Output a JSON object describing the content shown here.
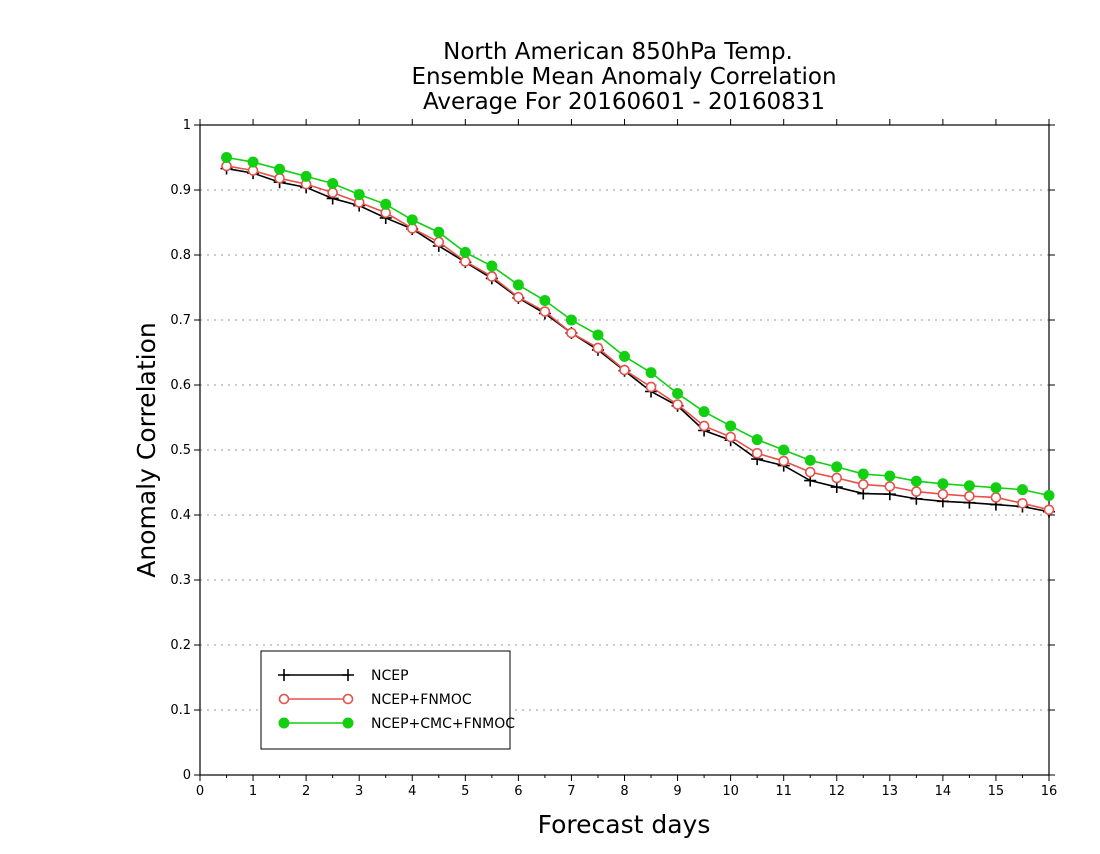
{
  "chart_data": {
    "type": "line",
    "title_lines": [
      "North American 850hPa Temp.",
      "Ensemble Mean Anomaly Correlation",
      "Average For 20160601 - 20160831"
    ],
    "xlabel": "Forecast days",
    "ylabel": "Anomaly Correlation",
    "xlim": [
      0,
      16
    ],
    "ylim": [
      0,
      1
    ],
    "x_ticks": [
      "0",
      "1",
      "2",
      "3",
      "4",
      "5",
      "6",
      "7",
      "8",
      "9",
      "10",
      "11",
      "12",
      "13",
      "14",
      "15",
      "16"
    ],
    "y_ticks": [
      "0",
      "0.1",
      "0.2",
      "0.3",
      "0.4",
      "0.5",
      "0.6",
      "0.7",
      "0.8",
      "0.9",
      "1"
    ],
    "grid": true,
    "legend_position": "bottom-left",
    "x": [
      0.5,
      1,
      1.5,
      2,
      2.5,
      3,
      3.5,
      4,
      4.5,
      5,
      5.5,
      6,
      6.5,
      7,
      7.5,
      8,
      8.5,
      9,
      9.5,
      10,
      10.5,
      11,
      11.5,
      12,
      12.5,
      13,
      13.5,
      14,
      14.5,
      15,
      15.5,
      16
    ],
    "series": [
      {
        "name": "NCEP",
        "color": "#000000",
        "marker": "plus",
        "values": [
          0.933,
          0.926,
          0.912,
          0.904,
          0.887,
          0.876,
          0.857,
          0.84,
          0.814,
          0.789,
          0.764,
          0.734,
          0.71,
          0.68,
          0.654,
          0.622,
          0.59,
          0.568,
          0.53,
          0.515,
          0.486,
          0.476,
          0.453,
          0.443,
          0.433,
          0.432,
          0.425,
          0.421,
          0.419,
          0.416,
          0.413,
          0.405
        ]
      },
      {
        "name": "NCEP+FNMOC",
        "color": "#e8504a",
        "marker": "open-circle",
        "values": [
          0.937,
          0.93,
          0.918,
          0.909,
          0.896,
          0.881,
          0.865,
          0.841,
          0.82,
          0.79,
          0.767,
          0.735,
          0.713,
          0.68,
          0.657,
          0.623,
          0.597,
          0.57,
          0.537,
          0.52,
          0.495,
          0.483,
          0.466,
          0.457,
          0.447,
          0.444,
          0.436,
          0.432,
          0.429,
          0.427,
          0.418,
          0.408
        ]
      },
      {
        "name": "NCEP+CMC+FNMOC",
        "color": "#12cf12",
        "marker": "filled-circle",
        "values": [
          0.95,
          0.943,
          0.932,
          0.921,
          0.91,
          0.893,
          0.878,
          0.854,
          0.835,
          0.804,
          0.783,
          0.754,
          0.73,
          0.7,
          0.677,
          0.644,
          0.619,
          0.587,
          0.559,
          0.537,
          0.516,
          0.5,
          0.484,
          0.474,
          0.463,
          0.46,
          0.452,
          0.448,
          0.445,
          0.442,
          0.439,
          0.43
        ]
      }
    ]
  }
}
